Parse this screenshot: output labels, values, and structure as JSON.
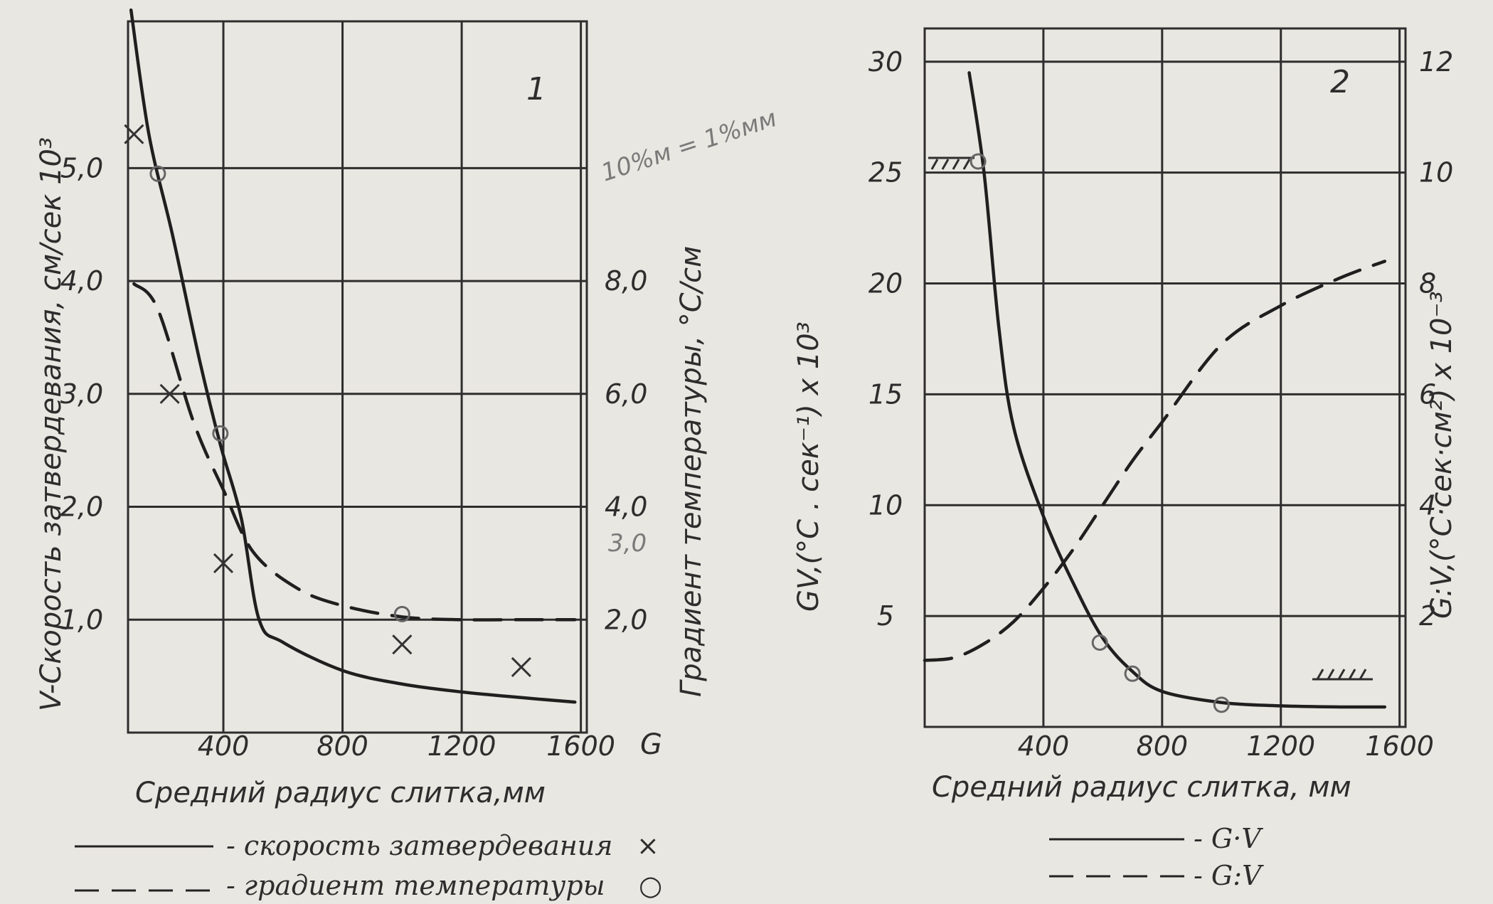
{
  "chart_data": [
    {
      "panel_label": "1",
      "type": "line",
      "xlabel": "Средний радиус слитка,мм",
      "xlim": [
        80,
        1620
      ],
      "xticks": [
        "400",
        "800",
        "1200",
        "1600"
      ],
      "ylabel_left": "V-Скорость затвердевания, см/сек 10³",
      "ylim_left": [
        0,
        6.3
      ],
      "yticks_left": [
        "1,0",
        "2,0",
        "3,0",
        "4,0",
        "5,0"
      ],
      "ylabel_right": "Градиент температуры, °С/см",
      "ylim_right": [
        0,
        12.6
      ],
      "yticks_right": [
        "2,0",
        "4,0",
        "6,0",
        "8,0"
      ],
      "right_axis_glyph": "G",
      "annotations": [
        "10%м = 1%мм",
        "3,0"
      ],
      "series": [
        {
          "name": "скорость затвердевания",
          "axis": "left",
          "style": "solid",
          "x": [
            90,
            150,
            230,
            320,
            390,
            460,
            520,
            600,
            800,
            1000,
            1200,
            1400,
            1580
          ],
          "y": [
            6.4,
            5.3,
            4.4,
            3.3,
            2.55,
            1.9,
            1.0,
            0.8,
            0.55,
            0.43,
            0.36,
            0.31,
            0.27
          ]
        },
        {
          "name": "градиент температуры",
          "axis": "right",
          "style": "dashed",
          "x": [
            100,
            180,
            300,
            400,
            500,
            650,
            800,
            1000,
            1200,
            1400,
            1580
          ],
          "y": [
            7.95,
            7.5,
            5.5,
            4.3,
            3.2,
            2.55,
            2.25,
            2.05,
            2.0,
            2.0,
            2.0
          ]
        }
      ],
      "markers_cross": {
        "legend_symbol": "×",
        "x": [
          100,
          220,
          400,
          1000,
          1400
        ],
        "y": [
          5.3,
          3.0,
          1.5,
          0.78,
          0.58
        ]
      },
      "markers_circle": {
        "legend_symbol": "○",
        "x": [
          180,
          390,
          1000
        ],
        "y": [
          9.9,
          5.3,
          2.1
        ]
      }
    },
    {
      "panel_label": "2",
      "type": "line",
      "xlabel": "Средний радиус слитка, мм",
      "xlim": [
        0,
        1620
      ],
      "xticks": [
        "400",
        "800",
        "1200",
        "1600"
      ],
      "ylabel_left": "GV,(°C . сек⁻¹) x 10³",
      "ylim_left": [
        0,
        31.5
      ],
      "yticks_left": [
        "5",
        "10",
        "15",
        "20",
        "25",
        "30"
      ],
      "ylabel_right": "G:V,(°C·сек·см²) x 10⁻³",
      "ylim_right": [
        0,
        12.6
      ],
      "yticks_right": [
        "2",
        "4",
        "6",
        "8",
        "10",
        "12"
      ],
      "series": [
        {
          "name": "G·V",
          "axis": "left",
          "style": "solid",
          "x": [
            150,
            200,
            250,
            300,
            400,
            500,
            600,
            700,
            800,
            1000,
            1200,
            1400,
            1550
          ],
          "y": [
            29.5,
            25.0,
            18.0,
            13.5,
            9.5,
            6.5,
            4.0,
            2.5,
            1.6,
            1.1,
            0.95,
            0.9,
            0.9
          ]
        },
        {
          "name": "G:V",
          "axis": "right",
          "style": "dashed",
          "x": [
            0,
            100,
            200,
            300,
            400,
            500,
            600,
            700,
            800,
            1000,
            1200,
            1400,
            1550
          ],
          "y": [
            1.2,
            1.25,
            1.5,
            1.9,
            2.5,
            3.2,
            4.0,
            4.8,
            5.5,
            6.9,
            7.6,
            8.1,
            8.4
          ]
        }
      ],
      "markers_circle": {
        "x": [
          180,
          590,
          700,
          1000
        ],
        "y": [
          25.5,
          3.8,
          2.4,
          1.0
        ]
      },
      "hatch_marks": [
        "upper-left",
        "lower-right"
      ]
    }
  ],
  "legends": {
    "left": [
      {
        "label": "- скорость затвердевания",
        "style": "solid",
        "symbol": "×"
      },
      {
        "label": "- градиент температуры",
        "style": "dashed",
        "symbol": "○"
      }
    ],
    "right": [
      {
        "label": "- G·V",
        "style": "solid"
      },
      {
        "label": "- G:V",
        "style": "dashed"
      }
    ]
  }
}
